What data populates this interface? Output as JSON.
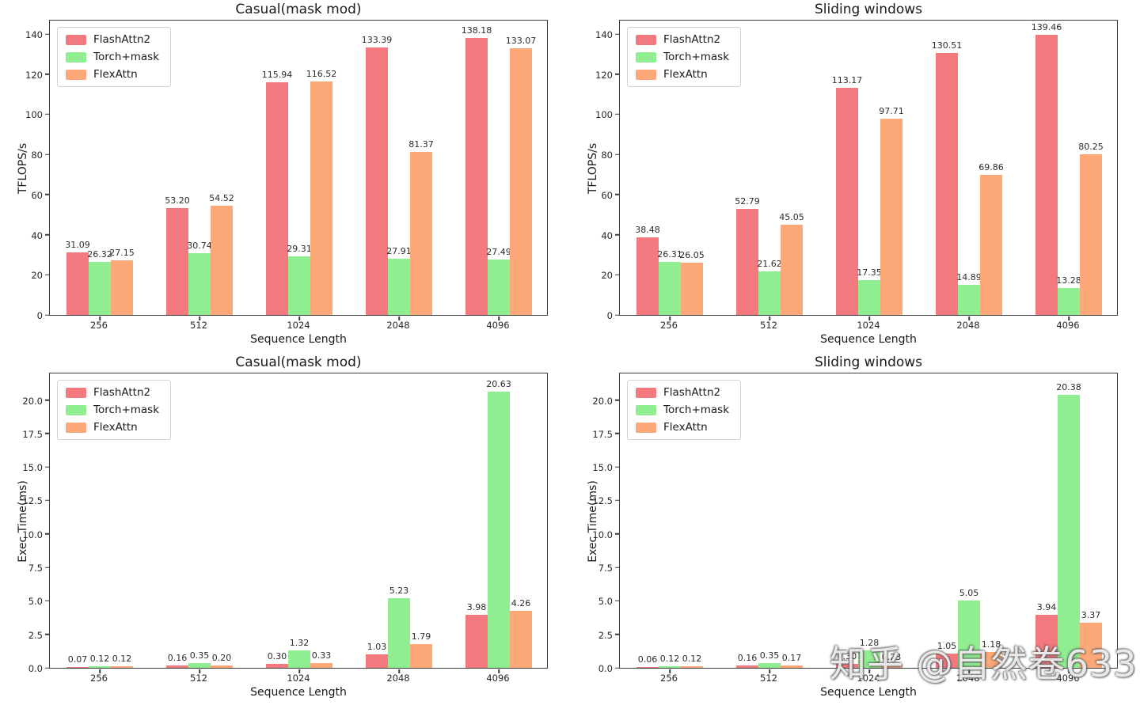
{
  "watermark": {
    "text": "知乎 @自然卷633"
  },
  "colors": {
    "flashattn2": "#F4797E",
    "torch_mask": "#90EE90",
    "flexattn": "#FCA878",
    "axis": "#3a3a3a"
  },
  "chart_data": [
    {
      "type": "bar",
      "title": "Casual(mask mod)",
      "xlabel": "Sequence Length",
      "ylabel": "TFLOPS/s",
      "categories": [
        "256",
        "512",
        "1024",
        "2048",
        "4096"
      ],
      "series": [
        {
          "name": "FlashAttn2",
          "color": "#F4797E",
          "values": [
            31.09,
            53.2,
            115.94,
            133.39,
            138.18
          ]
        },
        {
          "name": "Torch+mask",
          "color": "#90EE90",
          "values": [
            26.32,
            30.74,
            29.31,
            27.91,
            27.49
          ]
        },
        {
          "name": "FlexAttn",
          "color": "#FCA878",
          "values": [
            27.15,
            54.52,
            116.52,
            81.37,
            133.07
          ]
        }
      ],
      "yticks": [
        0,
        20,
        40,
        60,
        80,
        100,
        120,
        140
      ],
      "ylim": [
        0,
        147.5
      ],
      "tick_decimals": 0,
      "legend_position": "upper left",
      "grid": false
    },
    {
      "type": "bar",
      "title": "Sliding windows",
      "xlabel": "Sequence Length",
      "ylabel": "TFLOPS/s",
      "categories": [
        "256",
        "512",
        "1024",
        "2048",
        "4096"
      ],
      "series": [
        {
          "name": "FlashAttn2",
          "color": "#F4797E",
          "values": [
            38.48,
            52.79,
            113.17,
            130.51,
            139.46
          ]
        },
        {
          "name": "Torch+mask",
          "color": "#90EE90",
          "values": [
            26.31,
            21.62,
            17.35,
            14.89,
            13.28
          ]
        },
        {
          "name": "FlexAttn",
          "color": "#FCA878",
          "values": [
            26.05,
            45.05,
            97.71,
            69.86,
            80.25
          ]
        }
      ],
      "yticks": [
        0,
        20,
        40,
        60,
        80,
        100,
        120,
        140
      ],
      "ylim": [
        0,
        147.5
      ],
      "tick_decimals": 0,
      "legend_position": "upper left",
      "grid": false
    },
    {
      "type": "bar",
      "title": "Casual(mask mod)",
      "xlabel": "Sequence Length",
      "ylabel": "Exec Time(ms)",
      "categories": [
        "256",
        "512",
        "1024",
        "2048",
        "4096"
      ],
      "series": [
        {
          "name": "FlashAttn2",
          "color": "#F4797E",
          "values": [
            0.07,
            0.16,
            0.3,
            1.03,
            3.98
          ]
        },
        {
          "name": "Torch+mask",
          "color": "#90EE90",
          "values": [
            0.12,
            0.35,
            1.32,
            5.23,
            20.63
          ]
        },
        {
          "name": "FlexAttn",
          "color": "#FCA878",
          "values": [
            0.12,
            0.2,
            0.33,
            1.79,
            4.26
          ]
        }
      ],
      "yticks": [
        0.0,
        2.5,
        5.0,
        7.5,
        10.0,
        12.5,
        15.0,
        17.5,
        20.0
      ],
      "ylim": [
        0,
        22.1
      ],
      "tick_decimals": 1,
      "legend_position": "upper left",
      "grid": false
    },
    {
      "type": "bar",
      "title": "Sliding windows",
      "xlabel": "Sequence Length",
      "ylabel": "Exec Time(ms)",
      "categories": [
        "256",
        "512",
        "1024",
        "2048",
        "4096"
      ],
      "series": [
        {
          "name": "FlashAttn2",
          "color": "#F4797E",
          "values": [
            0.06,
            0.16,
            0.3,
            1.05,
            3.94
          ]
        },
        {
          "name": "Torch+mask",
          "color": "#90EE90",
          "values": [
            0.12,
            0.35,
            1.28,
            5.05,
            20.38
          ]
        },
        {
          "name": "FlexAttn",
          "color": "#FCA878",
          "values": [
            0.12,
            0.17,
            0.23,
            1.18,
            3.37
          ]
        }
      ],
      "yticks": [
        0.0,
        2.5,
        5.0,
        7.5,
        10.0,
        12.5,
        15.0,
        17.5,
        20.0
      ],
      "ylim": [
        0,
        22.1
      ],
      "tick_decimals": 1,
      "legend_position": "upper left",
      "grid": false
    }
  ]
}
